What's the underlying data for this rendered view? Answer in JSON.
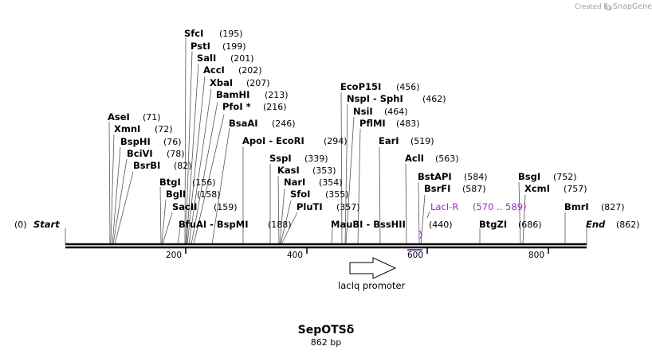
{
  "map": {
    "name": "SepOTSδ",
    "length_label": "862 bp",
    "length": 862,
    "start_label": "Start",
    "start_pos": "(0)",
    "end_label": "End",
    "end_pos": "(862)"
  },
  "credit": {
    "text": "Created by",
    "brand": "SnapGene"
  },
  "ticks": [
    "200",
    "400",
    "600",
    "800"
  ],
  "sites": [
    {
      "name": "SfcI",
      "pos": "(195)",
      "at": 195
    },
    {
      "name": "PstI",
      "pos": "(199)",
      "at": 199
    },
    {
      "name": "SalI",
      "pos": "(201)",
      "at": 201
    },
    {
      "name": "AccI",
      "pos": "(202)",
      "at": 202
    },
    {
      "name": "XbaI",
      "pos": "(207)",
      "at": 207
    },
    {
      "name": "BamHI",
      "pos": "(213)",
      "at": 213
    },
    {
      "name": "PfoI *",
      "pos": "(216)",
      "at": 216
    },
    {
      "name": "BsaAI",
      "pos": "(246)",
      "at": 246
    },
    {
      "name": "AseI",
      "pos": "(71)",
      "at": 71
    },
    {
      "name": "XmnI",
      "pos": "(72)",
      "at": 72
    },
    {
      "name": "BspHI",
      "pos": "(76)",
      "at": 76
    },
    {
      "name": "BciVI",
      "pos": "(78)",
      "at": 78
    },
    {
      "name": "BsrBI",
      "pos": "(82)",
      "at": 82
    },
    {
      "name": "BtgI",
      "pos": "(156)",
      "at": 156
    },
    {
      "name": "BglI",
      "pos": "(158)",
      "at": 158
    },
    {
      "name": "SacII",
      "pos": "(159)",
      "at": 159
    },
    {
      "name": "BfuAI - BspMI",
      "pos": "(188)",
      "at": 188
    },
    {
      "name": "ApoI - EcoRI",
      "pos": "(294)",
      "at": 294
    },
    {
      "name": "SspI",
      "pos": "(339)",
      "at": 339
    },
    {
      "name": "KasI",
      "pos": "(353)",
      "at": 353
    },
    {
      "name": "NarI",
      "pos": "(354)",
      "at": 354
    },
    {
      "name": "SfoI",
      "pos": "(355)",
      "at": 355
    },
    {
      "name": "PluTI",
      "pos": "(357)",
      "at": 357
    },
    {
      "name": "EcoP15I",
      "pos": "(456)",
      "at": 456
    },
    {
      "name": "NspI - SphI",
      "pos": "(462)",
      "at": 462
    },
    {
      "name": "NsiI",
      "pos": "(464)",
      "at": 464
    },
    {
      "name": "PflMI",
      "pos": "(483)",
      "at": 483
    },
    {
      "name": "MauBI - BssHII",
      "pos": "(440)",
      "at": 440
    },
    {
      "name": "EarI",
      "pos": "(519)",
      "at": 519
    },
    {
      "name": "AclI",
      "pos": "(563)",
      "at": 563
    },
    {
      "name": "BstAPI",
      "pos": "(584)",
      "at": 584
    },
    {
      "name": "BsrFI",
      "pos": "(587)",
      "at": 587
    },
    {
      "name": "BtgZI",
      "pos": "(686)",
      "at": 686
    },
    {
      "name": "BsgI",
      "pos": "(752)",
      "at": 752
    },
    {
      "name": "XcmI",
      "pos": "(757)",
      "at": 757
    },
    {
      "name": "BmrI",
      "pos": "(827)",
      "at": 827
    }
  ],
  "primer": {
    "name": "LacI-R",
    "range": "(570 .. 589)",
    "color": "#9b30c8"
  },
  "feature": {
    "name": "lacIq promoter",
    "direction": "forward"
  }
}
